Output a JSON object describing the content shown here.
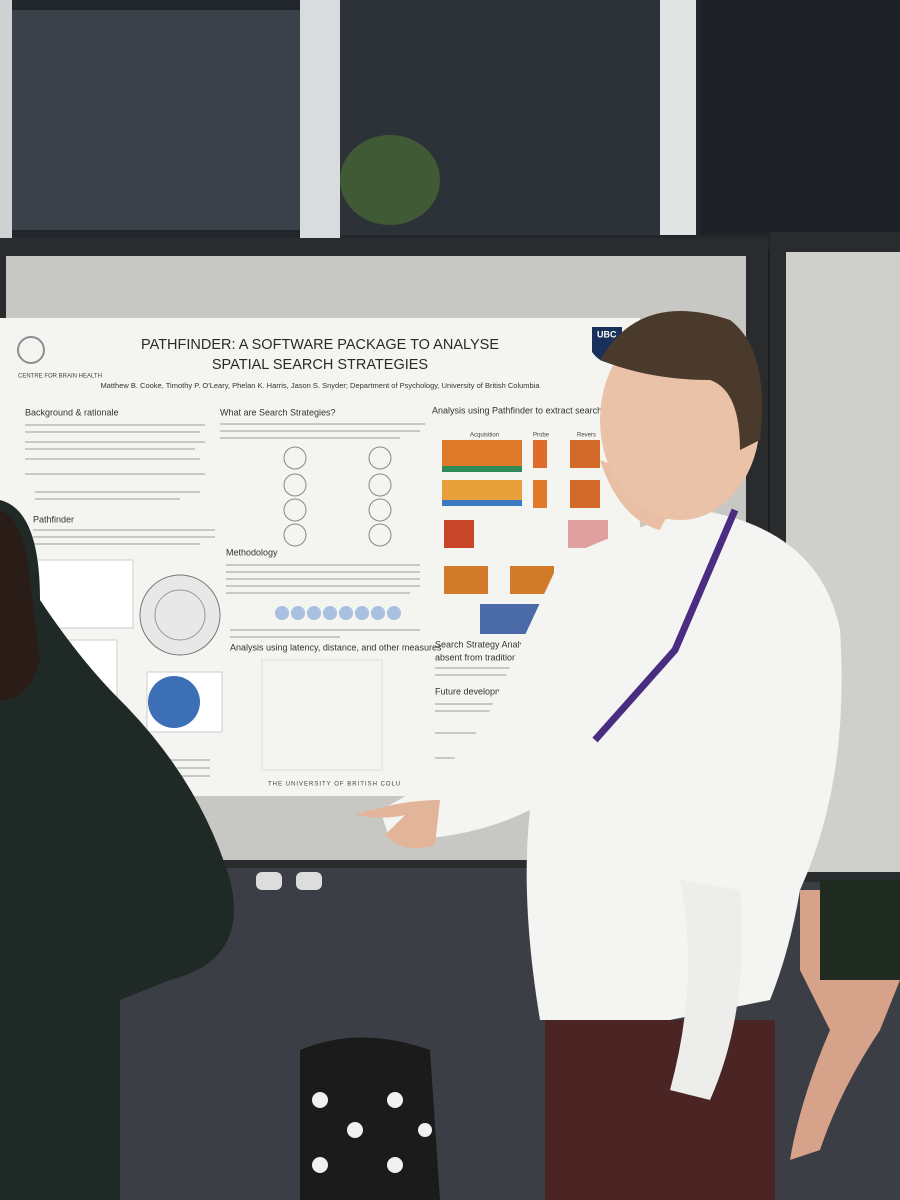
{
  "poster": {
    "title": [
      "PATHFINDER: A SOFTWARE PACKAGE TO ANALYSE",
      "SPATIAL SEARCH STRATEGIES"
    ],
    "authors": "Matthew B. Cooke, Timothy P. O'Leary, Phelan K. Harris, Jason S. Snyder; Department of Psychology, University of British Columbia",
    "logo_left": "CENTRE FOR BRAIN HEALTH",
    "logo_right": "UBC",
    "headings": [
      "Background & rationale",
      "What are Search Strategies?",
      "Analysis using Pathfinder to extract search stra",
      "Pathfinder",
      "Methodology",
      "Analysis using latency, distance, and other measures",
      "Search Strategy Analysis provides nove",
      "absent from traditional methods",
      "Future development"
    ],
    "figure_labels": [
      "Acquisition",
      "Probe",
      "Revers"
    ],
    "footer": "THE UNIVERSITY OF BRITISH COLU"
  }
}
